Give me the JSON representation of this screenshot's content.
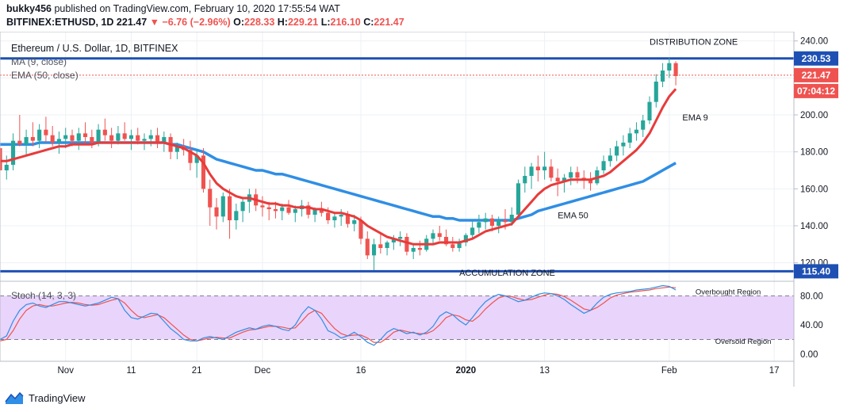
{
  "header": {
    "author": "bukky456",
    "published_text": "published on TradingView.com, February 10, 2020 17:55:54 WAT",
    "symbol": "BITFINEX:ETHUSD, 1D",
    "last": "221.47",
    "change_arrow": "▼",
    "change": "−6.76 (−2.96%)",
    "o_label": "O:",
    "o": "228.33",
    "h_label": "H:",
    "h": "229.21",
    "l_label": "L:",
    "l": "216.10",
    "c_label": "C:",
    "c": "221.47"
  },
  "footer": {
    "brand": "TradingView",
    "logo_icon": "tradingview-logo-icon"
  },
  "colors": {
    "up": "#26a69a",
    "down": "#ef5350",
    "ema9": "#e83b3b",
    "ema50": "#2f8ee5",
    "level": "#1e50b4",
    "stoch_fill": "#e9d4fb",
    "stoch_k": "#2f8ee5",
    "stoch_d": "#ef5350"
  },
  "chart_data": [
    {
      "type": "candlestick",
      "title": "Ethereum / U.S. Dollar, 1D, BITFINEX",
      "indicators": [
        "MA (9, close)",
        "EMA (50, close)"
      ],
      "ylim": [
        110,
        245
      ],
      "y_ticks": [
        "240.00",
        "220.00",
        "200.00",
        "180.00",
        "160.00",
        "140.00",
        "120.00"
      ],
      "x_ticks": [
        "Nov",
        "11",
        "21",
        "Dec",
        "16",
        "2020",
        "13",
        "Feb",
        "17"
      ],
      "x_tick_dates": [
        "2019-11-01",
        "2019-11-11",
        "2019-11-21",
        "2019-12-01",
        "2019-12-16",
        "2020-01-01",
        "2020-01-13",
        "2020-02-01",
        "2020-02-17"
      ],
      "x_range": [
        "2019-10-22",
        "2020-02-20"
      ],
      "grid": true,
      "price_labels": {
        "resistance": "230.53",
        "last": "221.47",
        "countdown": "07:04:12",
        "support": "115.40"
      },
      "levels": {
        "resistance": 230.53,
        "support": 115.4,
        "last": 221.47
      },
      "annotations": {
        "distribution": "DISTRIBUTION ZONE",
        "accumulation": "ACCUMULATION ZONE",
        "ema9": "EMA 9",
        "ema50": "EMA 50"
      },
      "annotation_anchor_dates": {
        "distribution": "2020-01-29",
        "accumulation": "2019-12-31",
        "ema9": "2020-02-03",
        "ema50": "2020-01-15"
      },
      "annotation_anchor_values": {
        "distribution": 238,
        "accumulation": 113,
        "ema9": 197,
        "ema50": 144
      },
      "start_date": "2019-10-22",
      "ohlc": [
        [
          182,
          185,
          163,
          170
        ],
        [
          170,
          178,
          165,
          173
        ],
        [
          173,
          190,
          170,
          186
        ],
        [
          186,
          200,
          183,
          184
        ],
        [
          184,
          192,
          178,
          188
        ],
        [
          188,
          196,
          183,
          186
        ],
        [
          186,
          195,
          182,
          192
        ],
        [
          192,
          199,
          185,
          189
        ],
        [
          189,
          194,
          183,
          185
        ],
        [
          185,
          191,
          179,
          187
        ],
        [
          187,
          193,
          182,
          189
        ],
        [
          189,
          192,
          183,
          186
        ],
        [
          186,
          193,
          181,
          190
        ],
        [
          190,
          196,
          184,
          188
        ],
        [
          188,
          192,
          182,
          185
        ],
        [
          185,
          195,
          183,
          192
        ],
        [
          192,
          198,
          186,
          189
        ],
        [
          189,
          193,
          182,
          186
        ],
        [
          186,
          194,
          184,
          190
        ],
        [
          190,
          196,
          186,
          187
        ],
        [
          187,
          192,
          181,
          189
        ],
        [
          189,
          193,
          184,
          186
        ],
        [
          186,
          190,
          181,
          187
        ],
        [
          187,
          192,
          183,
          189
        ],
        [
          189,
          193,
          182,
          185
        ],
        [
          185,
          191,
          180,
          188
        ],
        [
          188,
          190,
          176,
          180
        ],
        [
          180,
          185,
          176,
          183
        ],
        [
          183,
          187,
          178,
          181
        ],
        [
          181,
          186,
          170,
          174
        ],
        [
          174,
          181,
          166,
          178
        ],
        [
          178,
          182,
          158,
          160
        ],
        [
          160,
          165,
          140,
          150
        ],
        [
          150,
          155,
          138,
          145
        ],
        [
          145,
          158,
          142,
          156
        ],
        [
          156,
          160,
          133,
          143
        ],
        [
          143,
          152,
          138,
          148
        ],
        [
          148,
          155,
          142,
          153
        ],
        [
          153,
          160,
          147,
          157
        ],
        [
          157,
          160,
          148,
          151
        ],
        [
          151,
          156,
          145,
          150
        ],
        [
          150,
          153,
          143,
          149
        ],
        [
          149,
          153,
          144,
          148
        ],
        [
          148,
          152,
          143,
          150
        ],
        [
          150,
          154,
          146,
          147
        ],
        [
          147,
          151,
          142,
          149
        ],
        [
          149,
          154,
          145,
          151
        ],
        [
          151,
          153,
          144,
          146
        ],
        [
          146,
          150,
          142,
          149
        ],
        [
          149,
          153,
          145,
          147
        ],
        [
          147,
          150,
          141,
          143
        ],
        [
          143,
          147,
          139,
          145
        ],
        [
          145,
          149,
          140,
          146
        ],
        [
          146,
          148,
          139,
          141
        ],
        [
          141,
          146,
          137,
          143
        ],
        [
          143,
          145,
          130,
          133
        ],
        [
          133,
          137,
          122,
          124
        ],
        [
          124,
          133,
          116,
          130
        ],
        [
          130,
          136,
          125,
          128
        ],
        [
          128,
          132,
          124,
          131
        ],
        [
          131,
          135,
          127,
          133
        ],
        [
          133,
          137,
          129,
          134
        ],
        [
          134,
          136,
          124,
          126
        ],
        [
          126,
          130,
          122,
          128
        ],
        [
          128,
          132,
          124,
          127
        ],
        [
          127,
          135,
          126,
          133
        ],
        [
          133,
          138,
          130,
          136
        ],
        [
          136,
          140,
          132,
          134
        ],
        [
          134,
          138,
          129,
          130
        ],
        [
          130,
          134,
          126,
          128
        ],
        [
          128,
          133,
          126,
          131
        ],
        [
          131,
          136,
          129,
          135
        ],
        [
          135,
          143,
          133,
          139
        ],
        [
          139,
          146,
          136,
          142
        ],
        [
          142,
          147,
          138,
          144
        ],
        [
          144,
          146,
          137,
          140
        ],
        [
          140,
          145,
          136,
          143
        ],
        [
          143,
          149,
          138,
          142
        ],
        [
          142,
          150,
          140,
          146
        ],
        [
          146,
          165,
          145,
          163
        ],
        [
          163,
          172,
          158,
          167
        ],
        [
          167,
          174,
          160,
          172
        ],
        [
          172,
          178,
          164,
          170
        ],
        [
          170,
          180,
          165,
          172
        ],
        [
          172,
          176,
          164,
          166
        ],
        [
          166,
          171,
          156,
          164
        ],
        [
          164,
          168,
          158,
          166
        ],
        [
          166,
          172,
          162,
          169
        ],
        [
          169,
          172,
          163,
          166
        ],
        [
          166,
          170,
          160,
          165
        ],
        [
          165,
          169,
          159,
          163
        ],
        [
          163,
          172,
          162,
          170
        ],
        [
          170,
          178,
          168,
          175
        ],
        [
          175,
          182,
          172,
          178
        ],
        [
          178,
          186,
          175,
          183
        ],
        [
          183,
          189,
          178,
          185
        ],
        [
          185,
          193,
          182,
          190
        ],
        [
          190,
          196,
          186,
          192
        ],
        [
          192,
          200,
          188,
          197
        ],
        [
          197,
          210,
          195,
          207
        ],
        [
          207,
          222,
          204,
          218
        ],
        [
          218,
          228,
          215,
          224
        ],
        [
          224,
          231,
          220,
          228
        ],
        [
          228,
          229,
          216,
          221
        ]
      ],
      "ema9": [
        175,
        175,
        176,
        177,
        178,
        179,
        180,
        181,
        182,
        183,
        183,
        184,
        184,
        184,
        184,
        185,
        185,
        185,
        185,
        185,
        185,
        185,
        185,
        185,
        185,
        185,
        184,
        183,
        182,
        180,
        178,
        174,
        168,
        163,
        160,
        158,
        156,
        155,
        155,
        154,
        153,
        152,
        152,
        151,
        151,
        150,
        150,
        150,
        149,
        149,
        148,
        147,
        147,
        146,
        145,
        143,
        140,
        138,
        136,
        134,
        133,
        132,
        131,
        130,
        130,
        130,
        130,
        131,
        131,
        131,
        131,
        132,
        133,
        135,
        137,
        138,
        139,
        140,
        141,
        145,
        149,
        153,
        157,
        160,
        162,
        163,
        164,
        165,
        165,
        165,
        165,
        166,
        167,
        169,
        172,
        175,
        178,
        181,
        185,
        190,
        197,
        204,
        210,
        214
      ],
      "ema50": [
        184,
        184,
        184,
        184,
        184,
        184,
        185,
        185,
        185,
        185,
        185,
        185,
        185,
        185,
        185,
        185,
        185,
        185,
        185,
        185,
        185,
        185,
        185,
        185,
        185,
        185,
        184,
        184,
        183,
        182,
        181,
        180,
        178,
        176,
        175,
        174,
        173,
        172,
        171,
        170,
        170,
        169,
        168,
        168,
        167,
        166,
        165,
        164,
        163,
        162,
        161,
        160,
        159,
        158,
        157,
        156,
        155,
        154,
        153,
        152,
        151,
        150,
        149,
        148,
        147,
        146,
        145,
        145,
        144,
        144,
        143,
        143,
        143,
        143,
        143,
        143,
        143,
        143,
        143,
        144,
        145,
        146,
        148,
        149,
        150,
        151,
        152,
        153,
        154,
        155,
        156,
        157,
        158,
        159,
        160,
        161,
        162,
        163,
        164,
        166,
        168,
        170,
        172,
        174
      ]
    },
    {
      "type": "line",
      "title": "Stoch (14, 3, 3)",
      "ylim": [
        -10,
        100
      ],
      "y_ticks": [
        "80.00",
        "40.00",
        "0.00"
      ],
      "band": [
        20,
        80
      ],
      "annotations": {
        "overbought": "Overbought Region",
        "oversold": "Oversold Region"
      },
      "annotation_anchor_dates": {
        "overbought": "2020-02-05",
        "oversold": "2020-02-08"
      },
      "annotation_anchor_values": {
        "overbought": 82,
        "oversold": 14
      },
      "series": [
        {
          "name": "%K",
          "values": [
            20,
            25,
            45,
            60,
            68,
            70,
            66,
            64,
            68,
            72,
            72,
            70,
            68,
            66,
            68,
            70,
            74,
            78,
            76,
            60,
            50,
            48,
            52,
            56,
            55,
            45,
            35,
            28,
            20,
            18,
            18,
            22,
            24,
            22,
            20,
            25,
            30,
            33,
            36,
            34,
            38,
            40,
            38,
            34,
            32,
            40,
            55,
            65,
            60,
            48,
            32,
            28,
            22,
            25,
            30,
            24,
            16,
            12,
            20,
            30,
            35,
            32,
            28,
            30,
            26,
            30,
            38,
            52,
            58,
            54,
            46,
            40,
            50,
            62,
            72,
            78,
            82,
            80,
            76,
            72,
            74,
            78,
            82,
            84,
            83,
            80,
            75,
            68,
            62,
            56,
            60,
            70,
            78,
            82,
            84,
            85,
            86,
            88,
            89,
            90,
            92,
            94,
            93,
            88
          ]
        },
        {
          "name": "%D",
          "values": [
            18,
            20,
            32,
            48,
            60,
            66,
            68,
            66,
            66,
            68,
            70,
            71,
            70,
            68,
            67,
            68,
            71,
            74,
            76,
            70,
            60,
            52,
            50,
            52,
            54,
            50,
            42,
            34,
            26,
            20,
            18,
            20,
            22,
            23,
            22,
            22,
            26,
            30,
            33,
            34,
            36,
            38,
            38,
            37,
            35,
            36,
            45,
            55,
            60,
            56,
            45,
            35,
            28,
            25,
            26,
            26,
            22,
            16,
            16,
            22,
            30,
            33,
            31,
            29,
            28,
            28,
            32,
            40,
            50,
            54,
            52,
            47,
            45,
            52,
            62,
            70,
            77,
            80,
            79,
            76,
            74,
            75,
            78,
            81,
            83,
            82,
            79,
            74,
            68,
            62,
            60,
            64,
            70,
            77,
            81,
            83,
            85,
            86,
            87,
            88,
            90,
            91,
            92,
            91
          ]
        }
      ]
    }
  ]
}
